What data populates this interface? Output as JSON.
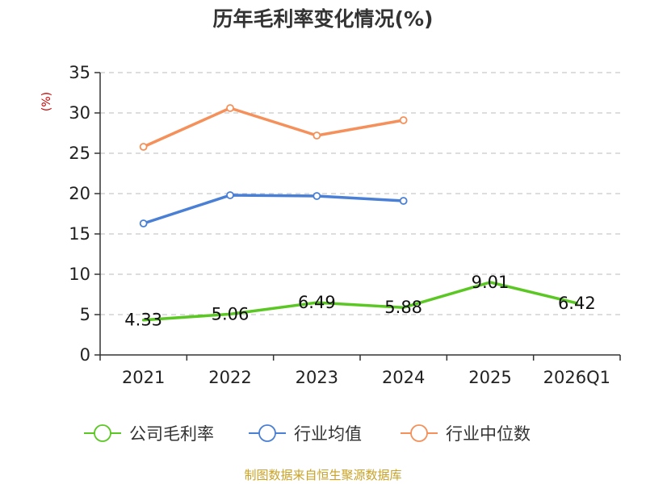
{
  "chart_data": {
    "type": "line",
    "title": "历年毛利率变化情况(%)",
    "ylabel": "(%)",
    "categories": [
      "2021",
      "2022",
      "2023",
      "2024",
      "2025",
      "2026Q1"
    ],
    "ylim": [
      0,
      35
    ],
    "yticks": [
      0,
      5,
      10,
      15,
      20,
      25,
      30,
      35
    ],
    "grid": true,
    "legend_position": "bottom",
    "series": [
      {
        "name": "公司毛利率",
        "color": "#5ac723",
        "values": [
          4.33,
          5.06,
          6.49,
          5.88,
          9.01,
          6.42
        ],
        "labels": [
          "4.33",
          "5.06",
          "6.49",
          "5.88",
          "9.01",
          "6.42"
        ],
        "markers": false
      },
      {
        "name": "行业均值",
        "color": "#4a7fd6",
        "values": [
          16.3,
          19.8,
          19.7,
          19.1,
          null,
          null
        ],
        "markers": true
      },
      {
        "name": "行业中位数",
        "color": "#f5905a",
        "values": [
          25.8,
          30.6,
          27.2,
          29.1,
          null,
          null
        ],
        "markers": true
      }
    ],
    "axis_color": "#333333",
    "grid_color": "#bbbbbb",
    "unit_color": "#cc0000"
  },
  "footer": {
    "source": "制图数据来自恒生聚源数据库",
    "color": "#c9a227"
  }
}
